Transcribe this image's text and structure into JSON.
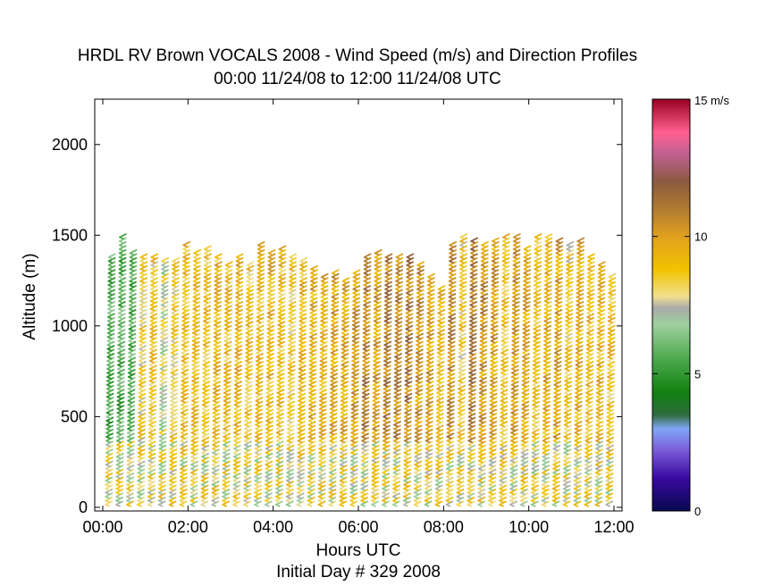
{
  "chart_data": {
    "type": "wind-barb profile",
    "title": "HRDL RV Brown VOCALS 2008 - Wind Speed (m/s) and Direction Profiles",
    "subtitle": "00:00 11/24/08 to 12:00 11/24/08  UTC",
    "xlabel": "Hours UTC",
    "xlabel2": "Initial Day # 329  2008",
    "ylabel": "Altitude (m)",
    "xlim": [
      0,
      12
    ],
    "ylim": [
      -20,
      2250
    ],
    "xticks": [
      0,
      2,
      4,
      6,
      8,
      10,
      12
    ],
    "xtick_labels": [
      "00:00",
      "02:00",
      "04:00",
      "06:00",
      "08:00",
      "10:00",
      "12:00"
    ],
    "yticks": [
      0,
      500,
      1000,
      1500,
      2000
    ],
    "ytick_labels": [
      "0",
      "500",
      "1000",
      "1500",
      "2000"
    ],
    "colorbar": {
      "label_top": "15 m/s",
      "ticks": [
        0,
        5,
        10
      ],
      "tick_labels": [
        "0",
        "5",
        "10"
      ],
      "range": [
        0,
        15
      ],
      "stops": [
        {
          "v": 0.0,
          "c": "#080850"
        },
        {
          "v": 1.2,
          "c": "#3a0aa0"
        },
        {
          "v": 2.2,
          "c": "#7a5ad8"
        },
        {
          "v": 3.0,
          "c": "#7fa6f5"
        },
        {
          "v": 3.5,
          "c": "#2e6b3e"
        },
        {
          "v": 4.3,
          "c": "#108010"
        },
        {
          "v": 5.5,
          "c": "#4ba84b"
        },
        {
          "v": 6.8,
          "c": "#9ed09e"
        },
        {
          "v": 7.4,
          "c": "#aaaaaa"
        },
        {
          "v": 7.8,
          "c": "#f0e090"
        },
        {
          "v": 8.8,
          "c": "#f2c200"
        },
        {
          "v": 10.0,
          "c": "#e0a020"
        },
        {
          "v": 11.0,
          "c": "#b07a30"
        },
        {
          "v": 12.0,
          "c": "#8a5a40"
        },
        {
          "v": 13.0,
          "c": "#c06090"
        },
        {
          "v": 13.8,
          "c": "#ff6090"
        },
        {
          "v": 15.0,
          "c": "#990020"
        }
      ]
    },
    "profile_times_hours": [
      0.0,
      0.25,
      0.5,
      0.75,
      1.0,
      1.25,
      1.5,
      1.75,
      2.0,
      2.25,
      2.5,
      2.75,
      3.0,
      3.25,
      3.5,
      3.75,
      4.0,
      4.25,
      4.5,
      4.75,
      5.0,
      5.25,
      5.5,
      5.75,
      6.0,
      6.25,
      6.5,
      6.75,
      7.0,
      7.25,
      7.5,
      7.75,
      8.0,
      8.25,
      8.5,
      8.75,
      9.0,
      9.25,
      9.5,
      9.75,
      10.0,
      10.25,
      10.5,
      10.75,
      11.0,
      11.25,
      11.5,
      11.75
    ],
    "profile_top_altitude_m": [
      1380,
      1490,
      1420,
      1390,
      1380,
      1370,
      1360,
      1460,
      1420,
      1440,
      1380,
      1340,
      1400,
      1350,
      1460,
      1410,
      1440,
      1400,
      1360,
      1320,
      1290,
      1300,
      1250,
      1300,
      1400,
      1420,
      1400,
      1400,
      1400,
      1340,
      1280,
      1210,
      1450,
      1500,
      1470,
      1460,
      1470,
      1500,
      1490,
      1430,
      1500,
      1500,
      1470,
      1460,
      1480,
      1400,
      1350,
      1280
    ],
    "profile_mean_speed_ms": [
      5.5,
      6.5,
      6.0,
      8.5,
      8.8,
      7.5,
      8.5,
      9.0,
      9.0,
      8.8,
      9.2,
      9.0,
      9.2,
      8.8,
      9.0,
      9.2,
      9.0,
      8.5,
      9.2,
      9.5,
      9.3,
      9.8,
      9.5,
      10.0,
      10.8,
      10.0,
      11.0,
      10.5,
      10.8,
      10.2,
      9.8,
      9.0,
      10.5,
      8.5,
      11.0,
      10.3,
      10.0,
      8.8,
      10.0,
      9.5,
      8.8,
      9.5,
      9.8,
      8.5,
      9.5,
      9.0,
      9.2,
      8.8
    ]
  }
}
